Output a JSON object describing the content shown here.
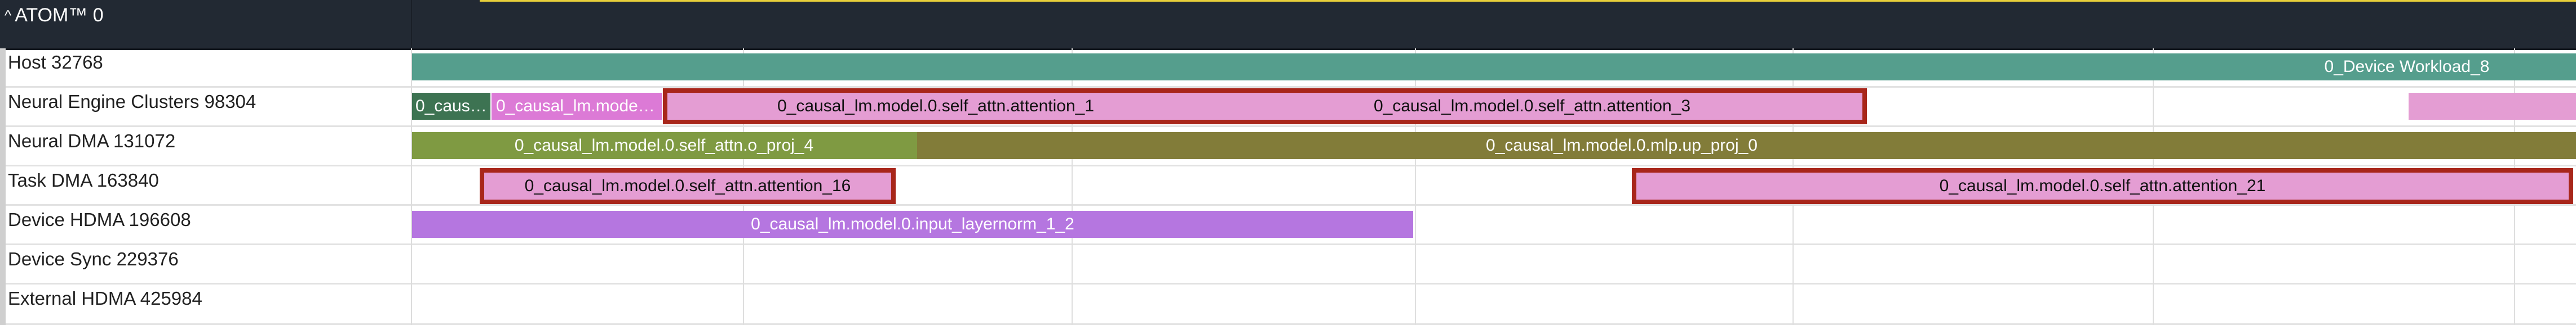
{
  "header": {
    "title": "ATOM™ 0",
    "collapse_icon": "chevron-up-icon"
  },
  "rows": [
    {
      "label": "Host 32768"
    },
    {
      "label": "Neural Engine Clusters 98304"
    },
    {
      "label": "Neural DMA 131072"
    },
    {
      "label": "Task DMA 163840"
    },
    {
      "label": "Device HDMA 196608"
    },
    {
      "label": "Device Sync 229376"
    },
    {
      "label": "External HDMA 425984"
    }
  ],
  "events": {
    "host_workload": "0_Device Workload_8",
    "ne_caus": "0_caus…",
    "ne_model": "0_causal_lm.mode…",
    "ne_attention_1": "0_causal_lm.model.0.self_attn.attention_1",
    "ne_attention_3": "0_causal_lm.model.0.self_attn.attention_3",
    "ndma_o_proj": "0_causal_lm.model.0.self_attn.o_proj_4",
    "ndma_up_proj": "0_causal_lm.model.0.mlp.up_proj_0",
    "tdma_attention_16": "0_causal_lm.model.0.self_attn.attention_16",
    "tdma_attention_21": "0_causal_lm.model.0.self_attn.attention_21",
    "hdma_layernorm": "0_causal_lm.model.0.input_layernorm_1_2"
  },
  "colors": {
    "header_bg": "#222933",
    "host": "#559e8d",
    "ne_dark_green": "#3d7352",
    "ne_magenta": "#dc7ad6",
    "attention_pink": "#e49dd3",
    "selection_outline": "#a8261a",
    "o_proj_green": "#7f9a42",
    "up_proj_olive": "#827c39",
    "layernorm_purple": "#b576e0"
  }
}
